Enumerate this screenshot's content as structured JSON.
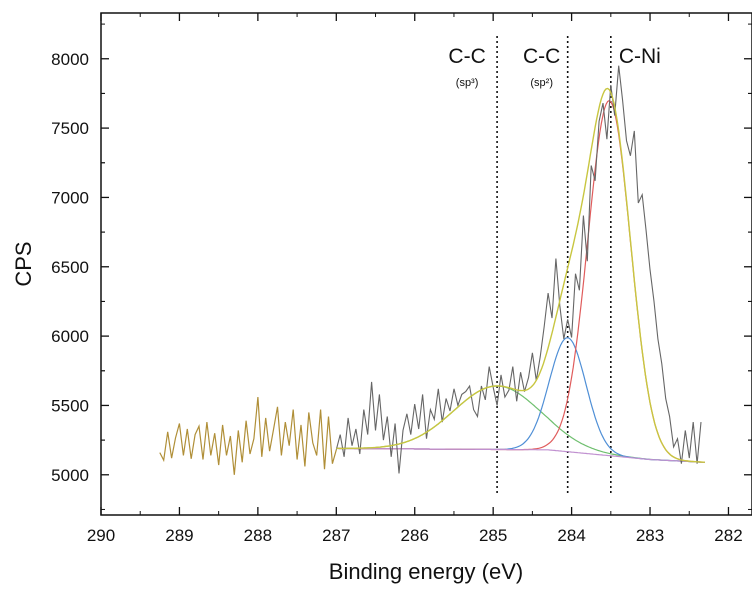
{
  "chart_data": {
    "type": "line",
    "xlabel": "Binding energy (eV)",
    "ylabel": "CPS",
    "xlim": [
      290,
      281.7
    ],
    "ylim": [
      4710,
      8330
    ],
    "x_reversed": true,
    "xticks": [
      290,
      289,
      288,
      287,
      286,
      285,
      284,
      283,
      282
    ],
    "yticks": [
      5000,
      5500,
      6000,
      6500,
      7000,
      7500,
      8000
    ],
    "grid": false,
    "legend": "none",
    "annotations": [
      {
        "x": 284.95,
        "label": "C-C",
        "sub": "(sp³)"
      },
      {
        "x": 284.05,
        "label": "C-C",
        "sub": "(sp²)"
      },
      {
        "x": 283.5,
        "label": "C-Ni",
        "sub": ""
      }
    ],
    "colors": {
      "raw": "#666666",
      "raw_flat": "#b08f38",
      "envelope": "#c8c640",
      "c_sp3": "#6fbf6f",
      "c_sp2": "#4f8fd6",
      "c_ni": "#e05c5c",
      "background": "#c090d0"
    },
    "series": [
      {
        "role": "raw",
        "x": [
          289.25,
          289.2,
          289.15,
          289.1,
          289.05,
          289.0,
          288.95,
          288.9,
          288.85,
          288.8,
          288.75,
          288.7,
          288.65,
          288.6,
          288.55,
          288.5,
          288.45,
          288.4,
          288.35,
          288.3,
          288.25,
          288.2,
          288.15,
          288.1,
          288.05,
          288.0,
          287.95,
          287.9,
          287.85,
          287.8,
          287.75,
          287.7,
          287.65,
          287.6,
          287.55,
          287.5,
          287.45,
          287.4,
          287.35,
          287.3,
          287.25,
          287.2,
          287.15,
          287.1,
          287.05,
          287.0,
          286.95,
          286.9,
          286.85,
          286.8,
          286.75,
          286.7,
          286.65,
          286.6,
          286.55,
          286.5,
          286.45,
          286.4,
          286.35,
          286.3,
          286.25,
          286.2,
          286.15,
          286.1,
          286.05,
          286.0,
          285.95,
          285.9,
          285.85,
          285.8,
          285.75,
          285.7,
          285.65,
          285.6,
          285.55,
          285.5,
          285.45,
          285.4,
          285.35,
          285.3,
          285.25,
          285.2,
          285.15,
          285.1,
          285.05,
          285.0,
          284.95,
          284.9,
          284.85,
          284.8,
          284.75,
          284.7,
          284.65,
          284.6,
          284.55,
          284.5,
          284.45,
          284.4,
          284.35,
          284.3,
          284.25,
          284.2,
          284.15,
          284.1,
          284.05,
          284.0,
          283.95,
          283.9,
          283.85,
          283.8,
          283.75,
          283.7,
          283.65,
          283.6,
          283.55,
          283.5,
          283.45,
          283.4,
          283.35,
          283.3,
          283.25,
          283.2,
          283.15,
          283.1,
          283.05,
          283.0,
          282.95,
          282.9,
          282.85,
          282.8,
          282.75,
          282.7,
          282.65,
          282.6,
          282.55,
          282.5,
          282.45,
          282.4,
          282.35
        ],
        "y": [
          5160,
          5105,
          5310,
          5120,
          5265,
          5370,
          5140,
          5330,
          5115,
          5290,
          5350,
          5110,
          5380,
          5140,
          5300,
          5070,
          5360,
          5140,
          5280,
          5000,
          5320,
          5090,
          5390,
          5150,
          5260,
          5560,
          5130,
          5410,
          5170,
          5330,
          5490,
          5140,
          5380,
          5210,
          5470,
          5110,
          5360,
          5060,
          5450,
          5230,
          5140,
          5470,
          5040,
          5420,
          5080,
          5180,
          5290,
          5130,
          5410,
          5210,
          5330,
          5150,
          5470,
          5290,
          5670,
          5320,
          5580,
          5250,
          5420,
          5130,
          5370,
          5010,
          5320,
          5440,
          5290,
          5510,
          5330,
          5580,
          5260,
          5470,
          5400,
          5620,
          5380,
          5550,
          5460,
          5620,
          5500,
          5580,
          5600,
          5640,
          5470,
          5420,
          5640,
          5540,
          5780,
          5630,
          5500,
          5720,
          5560,
          5610,
          5780,
          5530,
          5740,
          5600,
          5700,
          5880,
          5680,
          5850,
          6070,
          6310,
          6130,
          6560,
          6220,
          5980,
          6120,
          5990,
          6450,
          6330,
          6870,
          6540,
          7230,
          7120,
          7550,
          7680,
          7420,
          7810,
          7590,
          7950,
          7700,
          7410,
          7300,
          7480,
          6960,
          7020,
          6760,
          6480,
          6250,
          5980,
          5800,
          5550,
          5420,
          5200,
          5260,
          5080,
          5320,
          5120,
          5380,
          5080,
          5380
        ]
      },
      {
        "role": "envelope",
        "name": ""
      },
      {
        "role": "component",
        "name": "",
        "center": 284.95,
        "height": 458,
        "fwhm": 1.3
      },
      {
        "role": "component",
        "name": "",
        "center": 284.05,
        "height": 822,
        "fwhm": 0.55
      },
      {
        "role": "component",
        "name": "",
        "center": 283.52,
        "height": 2560,
        "fwhm": 0.64
      },
      {
        "role": "background",
        "name": "",
        "x": [
          287.0,
          284.3,
          283.0,
          282.3
        ],
        "y": [
          5190,
          5180,
          5110,
          5090
        ]
      }
    ]
  }
}
